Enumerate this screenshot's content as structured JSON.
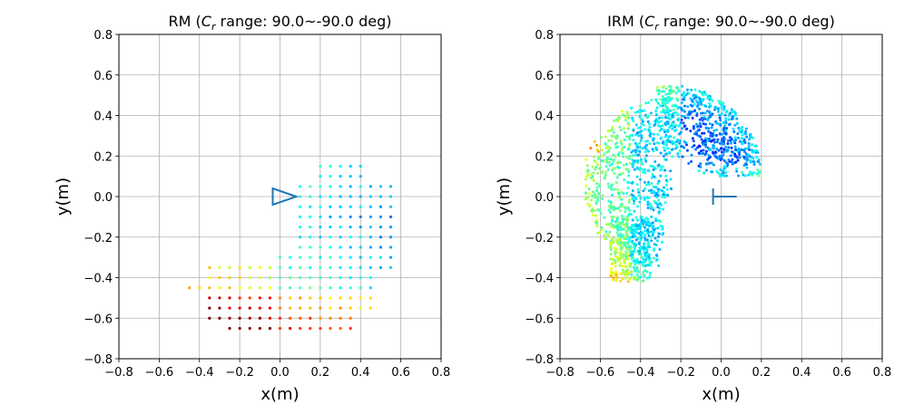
{
  "chart_data": [
    {
      "type": "scatter",
      "title_main": "RM (",
      "title_sym": "C",
      "title_sub": "r",
      "title_rest": " range: 90.0~-90.0 deg)",
      "xlabel": "x(m)",
      "ylabel": "y(m)",
      "xlim": [
        -0.8,
        0.8
      ],
      "ylim": [
        -0.8,
        0.8
      ],
      "xticks": [
        "−0.8",
        "−0.6",
        "−0.4",
        "−0.2",
        "0.0",
        "0.2",
        "0.4",
        "0.6",
        "0.8"
      ],
      "yticks": [
        "0.8",
        "0.6",
        "0.4",
        "0.2",
        "0.0",
        "−0.2",
        "−0.4",
        "−0.6",
        "−0.8"
      ],
      "grid": true,
      "robot_marker": "triangle-right",
      "marker_color": "#1f77b4",
      "colormap": "jet",
      "points_description": "grid of sampled reachable positions"
    },
    {
      "type": "scatter",
      "title_main": "IRM (",
      "title_sym": "C",
      "title_sub": "r",
      "title_rest": " range: 90.0~-90.0 deg)",
      "xlabel": "x(m)",
      "ylabel": "y(m)",
      "xlim": [
        -0.8,
        0.8
      ],
      "ylim": [
        -0.8,
        0.8
      ],
      "xticks": [
        "−0.8",
        "−0.6",
        "−0.4",
        "−0.2",
        "0.0",
        "0.2",
        "0.4",
        "0.6",
        "0.8"
      ],
      "yticks": [
        "0.8",
        "0.6",
        "0.4",
        "0.2",
        "0.0",
        "−0.2",
        "−0.4",
        "−0.6",
        "−0.8"
      ],
      "grid": true,
      "robot_marker": "gripper-left",
      "marker_color": "#1f77b4",
      "colormap": "jet"
    }
  ]
}
